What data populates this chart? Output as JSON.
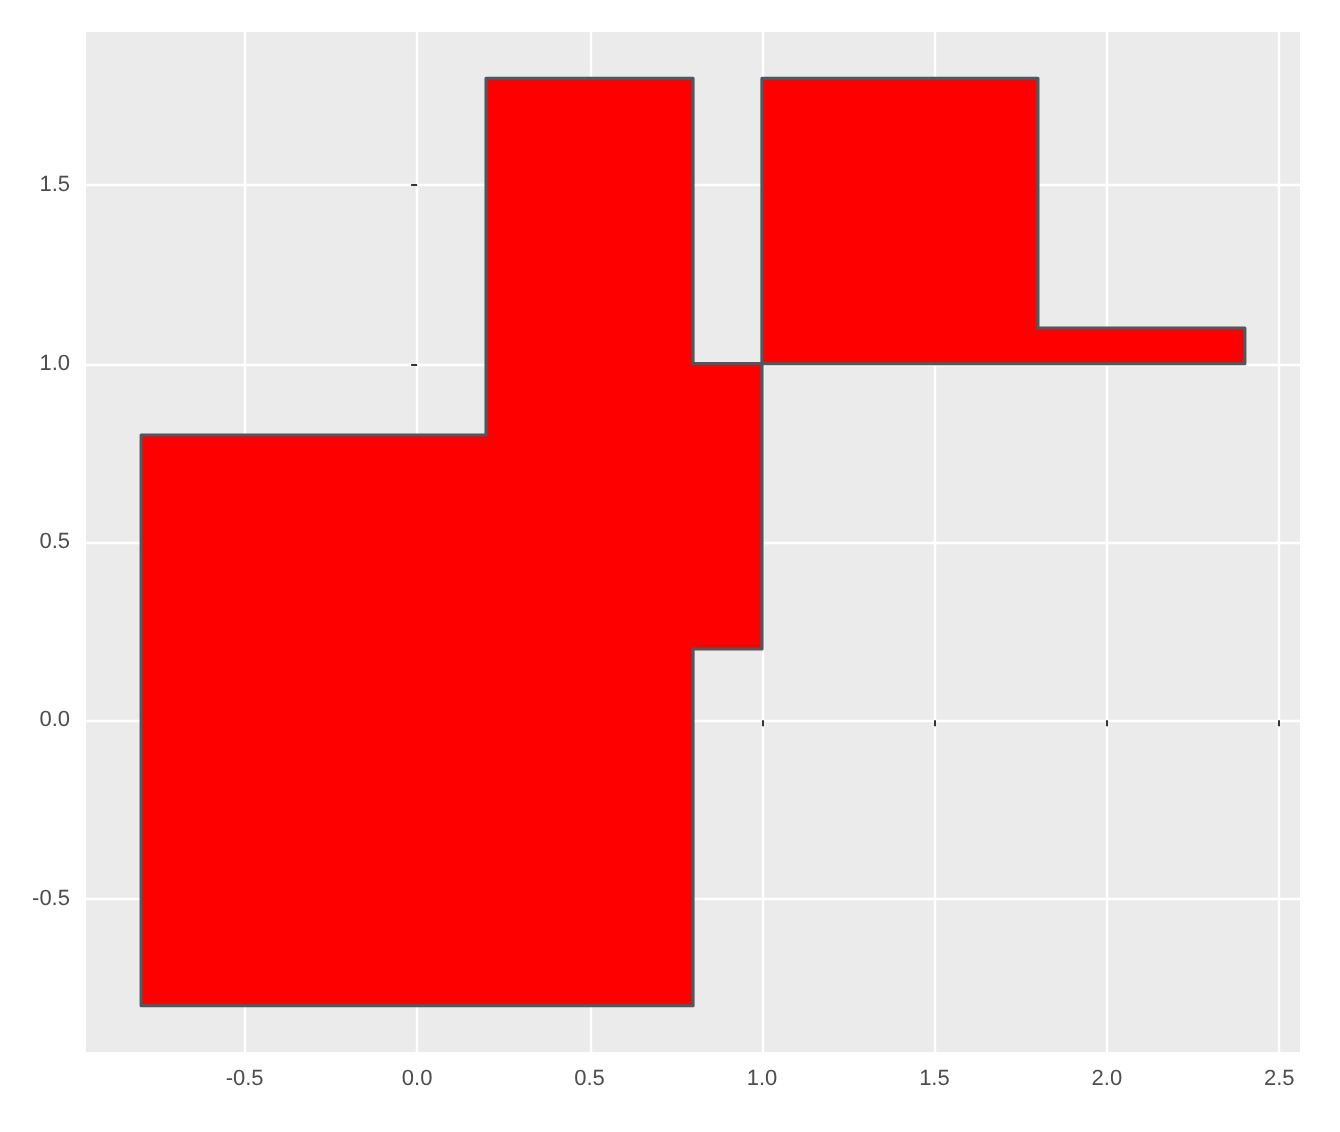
{
  "chart_data": {
    "type": "area",
    "x": [
      -0.8,
      -0.8,
      0.2,
      0.2,
      0.8,
      0.8,
      1.0,
      1.0,
      1.8,
      1.8,
      2.4,
      2.4,
      1.0,
      1.0,
      0.8,
      0.8
    ],
    "series": [
      {
        "color": "#ff0000",
        "values": [
          -0.8,
          0.8,
          0.8,
          1.8,
          1.8,
          1.0,
          1.0,
          1.8,
          1.8,
          1.1,
          1.1,
          1.0,
          1.0,
          0.2,
          0.2,
          -0.8
        ]
      }
    ],
    "xlim": [
      -0.96,
      2.56
    ],
    "ylim": [
      -0.93,
      1.93
    ],
    "xticks": [
      {
        "value": -0.5,
        "label": "-0.5"
      },
      {
        "value": 0,
        "label": "0.0"
      },
      {
        "value": 0.5,
        "label": "0.5"
      },
      {
        "value": 1,
        "label": "1.0"
      },
      {
        "value": 1.5,
        "label": "1.5"
      },
      {
        "value": 2,
        "label": "2.0"
      },
      {
        "value": 2.5,
        "label": "2.5"
      }
    ],
    "yticks": [
      {
        "value": -0.5,
        "label": "-0.5"
      },
      {
        "value": 0,
        "label": "0.0"
      },
      {
        "value": 0.5,
        "label": "0.5"
      },
      {
        "value": 1,
        "label": "1.0"
      },
      {
        "value": 1.5,
        "label": "1.5"
      }
    ],
    "grid": true
  }
}
